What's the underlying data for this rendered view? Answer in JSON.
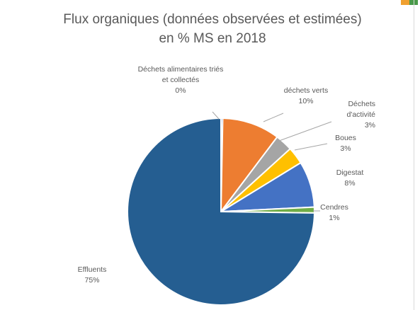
{
  "chart_data": {
    "type": "pie",
    "title": "Flux organiques (données observées et estimées)",
    "subtitle": "en % MS en 2018",
    "slices": [
      {
        "label": "Déchets alimentaires triés et collectés",
        "label_lines": [
          "Déchets alimentaires triés",
          "et collectés"
        ],
        "value": 0.3,
        "value_label": "0%",
        "color": "#4472c4"
      },
      {
        "label": "déchets verts",
        "label_lines": [
          "déchets verts"
        ],
        "value": 10,
        "value_label": "10%",
        "color": "#ed7d31"
      },
      {
        "label": "Déchets d'activité",
        "label_lines": [
          "Déchets",
          "d'activité"
        ],
        "value": 3,
        "value_label": "3%",
        "color": "#a5a5a5"
      },
      {
        "label": "Boues",
        "label_lines": [
          "Boues"
        ],
        "value": 3,
        "value_label": "3%",
        "color": "#ffc000"
      },
      {
        "label": "Digestat",
        "label_lines": [
          "Digestat"
        ],
        "value": 8,
        "value_label": "8%",
        "color": "#4472c4"
      },
      {
        "label": "Cendres",
        "label_lines": [
          "Cendres"
        ],
        "value": 1,
        "value_label": "1%",
        "color": "#70ad47"
      },
      {
        "label": "Effluents",
        "label_lines": [
          "Effluents"
        ],
        "value": 75,
        "value_label": "75%",
        "color": "#255e91"
      }
    ],
    "legend": "none",
    "data_labels": "outside with leader lines"
  }
}
